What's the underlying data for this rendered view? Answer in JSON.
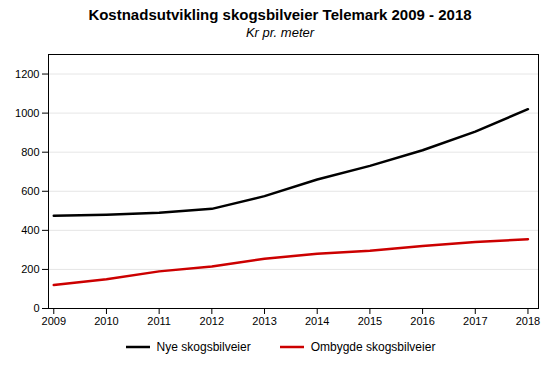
{
  "chart_data": {
    "type": "line",
    "title": "Kostnadsutvikling skogsbilveier Telemark 2009 - 2018",
    "subtitle": "Kr pr. meter",
    "x": [
      2009,
      2010,
      2011,
      2012,
      2013,
      2014,
      2015,
      2016,
      2017,
      2018
    ],
    "series": [
      {
        "name": "Nye skogsbilveier",
        "color": "#000000",
        "values": [
          475,
          480,
          490,
          510,
          575,
          660,
          730,
          810,
          905,
          1020
        ]
      },
      {
        "name": "Ombygde skogsbilveier",
        "color": "#cc0000",
        "values": [
          120,
          150,
          190,
          215,
          255,
          280,
          295,
          320,
          340,
          355
        ]
      }
    ],
    "xlim": [
      2008.9,
      2018.2
    ],
    "xticks": [
      2009,
      2010,
      2011,
      2012,
      2013,
      2014,
      2015,
      2016,
      2017,
      2018
    ],
    "ylim": [
      0,
      1300
    ],
    "yticks": [
      0,
      200,
      400,
      600,
      800,
      1000,
      1200
    ],
    "grid": "y",
    "legend": "bottom"
  }
}
